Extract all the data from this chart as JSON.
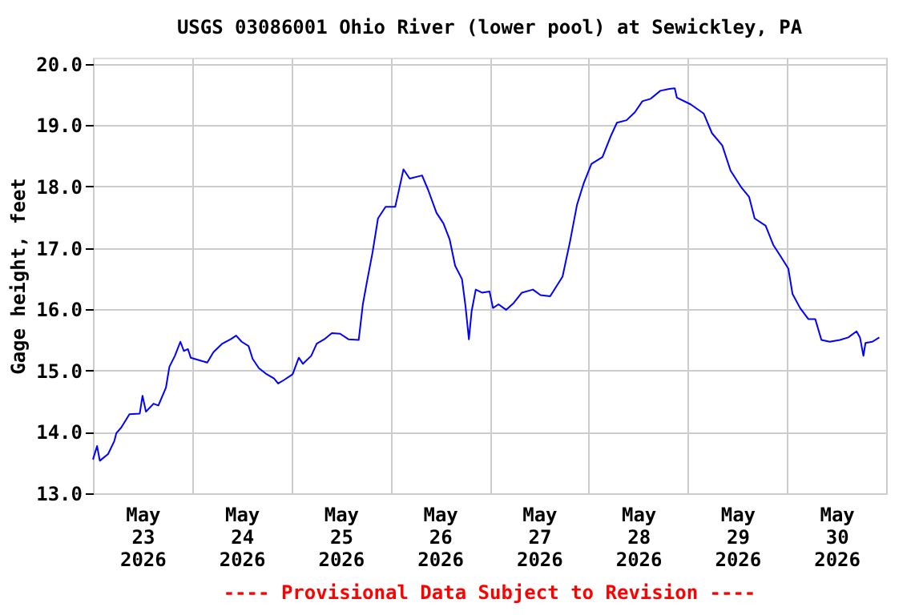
{
  "chart_data": {
    "type": "line",
    "title": "USGS 03086001 Ohio River (lower pool) at Sewickley, PA",
    "ylabel": "Gage height, feet",
    "annotations": [
      "---- Provisional Data Subject to Revision ----"
    ],
    "xlim": [
      "2026-05-23T00:00",
      "2026-05-31T00:00"
    ],
    "xticks": [
      {
        "value": "2026-05-23T00:00",
        "label": null
      },
      {
        "value": "2026-05-23T12:00",
        "label": "May 23 2026"
      },
      {
        "value": "2026-05-24T00:00",
        "label": null
      },
      {
        "value": "2026-05-24T12:00",
        "label": "May 24 2026"
      },
      {
        "value": "2026-05-25T00:00",
        "label": null
      },
      {
        "value": "2026-05-25T12:00",
        "label": "May 25 2026"
      },
      {
        "value": "2026-05-26T00:00",
        "label": null
      },
      {
        "value": "2026-05-26T12:00",
        "label": "May 26 2026"
      },
      {
        "value": "2026-05-27T00:00",
        "label": null
      },
      {
        "value": "2026-05-27T12:00",
        "label": "May 27 2026"
      },
      {
        "value": "2026-05-28T00:00",
        "label": null
      },
      {
        "value": "2026-05-28T12:00",
        "label": "May 28 2026"
      },
      {
        "value": "2026-05-29T00:00",
        "label": null
      },
      {
        "value": "2026-05-29T12:00",
        "label": "May 29 2026"
      },
      {
        "value": "2026-05-30T00:00",
        "label": null
      },
      {
        "value": "2026-05-30T12:00",
        "label": "May 30 2026"
      },
      {
        "value": "2026-05-31T00:00",
        "label": null
      }
    ],
    "ylim": [
      13,
      20.1
    ],
    "yticks": [
      {
        "value": 13,
        "label": "13.0"
      },
      {
        "value": 14,
        "label": "14.0"
      },
      {
        "value": 15,
        "label": "15.0"
      },
      {
        "value": 16,
        "label": "16.0"
      },
      {
        "value": 17,
        "label": "17.0"
      },
      {
        "value": 18,
        "label": "18.0"
      },
      {
        "value": 19,
        "label": "19.0"
      },
      {
        "value": 20,
        "label": "20.0"
      }
    ],
    "grid": true,
    "x": [
      "2026-05-23T00:00",
      "2026-05-23T01:00",
      "2026-05-23T01:40",
      "2026-05-23T03:40",
      "2026-05-23T05:10",
      "2026-05-23T05:40",
      "2026-05-23T06:50",
      "2026-05-23T08:50",
      "2026-05-23T11:20",
      "2026-05-23T12:00",
      "2026-05-23T12:50",
      "2026-05-23T14:40",
      "2026-05-23T15:50",
      "2026-05-23T17:40",
      "2026-05-23T18:30",
      "2026-05-23T19:50",
      "2026-05-23T21:10",
      "2026-05-23T22:00",
      "2026-05-23T23:00",
      "2026-05-23T23:40",
      "2026-05-24T01:40",
      "2026-05-24T03:40",
      "2026-05-24T05:10",
      "2026-05-24T07:20",
      "2026-05-24T09:20",
      "2026-05-24T10:40",
      "2026-05-24T12:00",
      "2026-05-24T13:40",
      "2026-05-24T14:40",
      "2026-05-24T16:10",
      "2026-05-24T17:50",
      "2026-05-24T19:50",
      "2026-05-24T20:50",
      "2026-05-24T22:20",
      "2026-05-25T00:20",
      "2026-05-25T01:50",
      "2026-05-25T02:50",
      "2026-05-25T04:50",
      "2026-05-25T06:10",
      "2026-05-25T08:00",
      "2026-05-25T09:50",
      "2026-05-25T11:50",
      "2026-05-25T13:50",
      "2026-05-25T16:20",
      "2026-05-25T17:20",
      "2026-05-25T18:20",
      "2026-05-25T19:40",
      "2026-05-25T21:00",
      "2026-05-25T22:50",
      "2026-05-26T01:10",
      "2026-05-26T01:50",
      "2026-05-26T03:10",
      "2026-05-26T04:40",
      "2026-05-26T07:40",
      "2026-05-26T09:10",
      "2026-05-26T11:10",
      "2026-05-26T12:50",
      "2026-05-26T14:20",
      "2026-05-26T15:40",
      "2026-05-26T17:20",
      "2026-05-26T18:10",
      "2026-05-26T19:00",
      "2026-05-26T19:40",
      "2026-05-26T20:40",
      "2026-05-26T22:10",
      "2026-05-27T00:00",
      "2026-05-27T00:50",
      "2026-05-27T02:10",
      "2026-05-27T04:00",
      "2026-05-27T05:50",
      "2026-05-27T07:50",
      "2026-05-27T10:30",
      "2026-05-27T12:20",
      "2026-05-27T14:40",
      "2026-05-27T17:40",
      "2026-05-27T19:30",
      "2026-05-27T21:10",
      "2026-05-27T22:50",
      "2026-05-28T00:40",
      "2026-05-28T03:20",
      "2026-05-28T05:20",
      "2026-05-28T06:50",
      "2026-05-28T09:10",
      "2026-05-28T11:10",
      "2026-05-28T13:00",
      "2026-05-28T15:00",
      "2026-05-28T17:20",
      "2026-05-28T19:30",
      "2026-05-28T20:50",
      "2026-05-28T21:20",
      "2026-05-29T00:40",
      "2026-05-29T03:50",
      "2026-05-29T05:50",
      "2026-05-29T08:20",
      "2026-05-29T10:20",
      "2026-05-29T13:00",
      "2026-05-29T14:50",
      "2026-05-29T16:10",
      "2026-05-29T18:50",
      "2026-05-29T20:40",
      "2026-05-29T22:40",
      "2026-05-30T00:20",
      "2026-05-30T01:20",
      "2026-05-30T03:10",
      "2026-05-30T05:10",
      "2026-05-30T06:50",
      "2026-05-30T08:20",
      "2026-05-30T10:20",
      "2026-05-30T12:50",
      "2026-05-30T14:50",
      "2026-05-30T16:50",
      "2026-05-30T17:40",
      "2026-05-30T18:30",
      "2026-05-30T19:00",
      "2026-05-30T20:40",
      "2026-05-30T22:20"
    ],
    "series": [
      {
        "color": "#0000ff",
        "values": [
          13.55,
          13.77,
          13.53,
          13.64,
          13.85,
          13.98,
          14.07,
          14.29,
          14.3,
          14.59,
          14.33,
          14.46,
          14.43,
          14.72,
          15.06,
          15.24,
          15.47,
          15.32,
          15.35,
          15.21,
          15.17,
          15.13,
          15.3,
          15.44,
          15.51,
          15.57,
          15.47,
          15.4,
          15.19,
          15.04,
          14.95,
          14.87,
          14.79,
          14.85,
          14.94,
          15.21,
          15.11,
          15.24,
          15.44,
          15.51,
          15.61,
          15.6,
          15.51,
          15.5,
          16.08,
          16.45,
          16.92,
          17.48,
          17.67,
          17.67,
          17.87,
          18.28,
          18.13,
          18.18,
          17.94,
          17.57,
          17.4,
          17.14,
          16.71,
          16.49,
          16.06,
          15.51,
          15.97,
          16.32,
          16.27,
          16.29,
          16.02,
          16.08,
          15.99,
          16.1,
          16.27,
          16.32,
          16.23,
          16.21,
          16.53,
          17.11,
          17.7,
          18.06,
          18.37,
          18.48,
          18.82,
          19.04,
          19.08,
          19.21,
          19.39,
          19.43,
          19.56,
          19.59,
          19.6,
          19.45,
          19.34,
          19.19,
          18.87,
          18.67,
          18.26,
          17.98,
          17.83,
          17.48,
          17.36,
          17.05,
          16.84,
          16.66,
          16.25,
          16.02,
          15.84,
          15.84,
          15.5,
          15.47,
          15.5,
          15.54,
          15.64,
          15.54,
          15.24,
          15.45,
          15.47,
          15.54
        ]
      }
    ]
  }
}
